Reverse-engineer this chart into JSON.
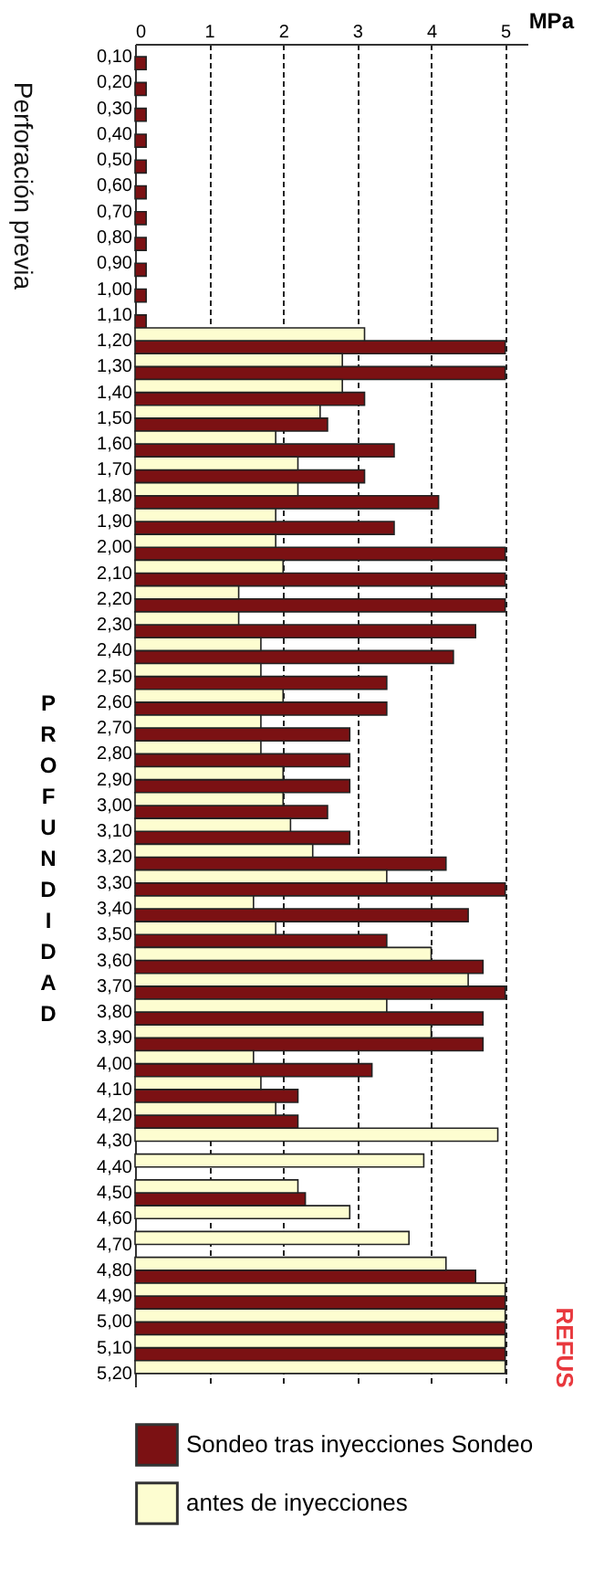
{
  "chart_data": {
    "type": "bar",
    "orientation": "horizontal",
    "xlabel": "MPa",
    "ylabel": "PROFUNDIDAD",
    "categories": [
      "0,10",
      "0,20",
      "0,30",
      "0,40",
      "0,50",
      "0,60",
      "0,70",
      "0,80",
      "0,90",
      "1,00",
      "1,10",
      "1,20",
      "1,30",
      "1,40",
      "1,50",
      "1,60",
      "1,70",
      "1,80",
      "1,90",
      "2,00",
      "2,10",
      "2,20",
      "2,30",
      "2,40",
      "2,50",
      "2,60",
      "2,70",
      "2,80",
      "2,90",
      "3,00",
      "3,10",
      "3,20",
      "3,30",
      "3,40",
      "3,50",
      "3,60",
      "3,70",
      "3,80",
      "3,90",
      "4,00",
      "4,10",
      "4,20",
      "4,30",
      "4,40",
      "4,50",
      "4,60",
      "4,70",
      "4,80",
      "4,90",
      "5,00",
      "5,10",
      "5,20"
    ],
    "series": [
      {
        "name": "Sondeo tras inyecciones Sondeo",
        "color": "#7b1113",
        "values": [
          0.15,
          0.15,
          0.15,
          0.15,
          0.15,
          0.15,
          0.15,
          0.15,
          0.15,
          0.15,
          0.15,
          5.0,
          5.0,
          3.1,
          2.6,
          3.5,
          3.1,
          4.1,
          3.5,
          5.0,
          5.0,
          5.0,
          4.6,
          4.3,
          3.4,
          3.4,
          2.9,
          2.9,
          2.9,
          2.6,
          2.9,
          4.2,
          5.0,
          4.5,
          3.4,
          4.7,
          5.0,
          4.7,
          4.7,
          3.2,
          2.2,
          2.2,
          null,
          null,
          2.3,
          null,
          null,
          4.6,
          5.0,
          5.0,
          5.0,
          null
        ]
      },
      {
        "name": "antes de inyecciones",
        "color": "#fdfdd0",
        "values": [
          0,
          0,
          0,
          0,
          0,
          0,
          0,
          0,
          0,
          0,
          0,
          3.1,
          2.8,
          2.8,
          2.5,
          1.9,
          2.2,
          2.2,
          1.9,
          1.9,
          2.0,
          1.4,
          1.4,
          1.7,
          1.7,
          2.0,
          1.7,
          1.7,
          2.0,
          2.0,
          2.1,
          2.4,
          3.4,
          1.6,
          1.9,
          4.0,
          4.5,
          3.4,
          4.0,
          1.6,
          1.7,
          1.9,
          4.9,
          3.9,
          2.2,
          2.9,
          3.7,
          4.2,
          5.0,
          5.0,
          5.0,
          5.0
        ]
      }
    ],
    "xlim": [
      0,
      5.3
    ],
    "xticks": [
      0,
      1,
      2,
      3,
      4,
      5
    ],
    "grid": "x",
    "legend": "bottom",
    "annotations": [
      "Perforación previa",
      "REFUS"
    ]
  }
}
